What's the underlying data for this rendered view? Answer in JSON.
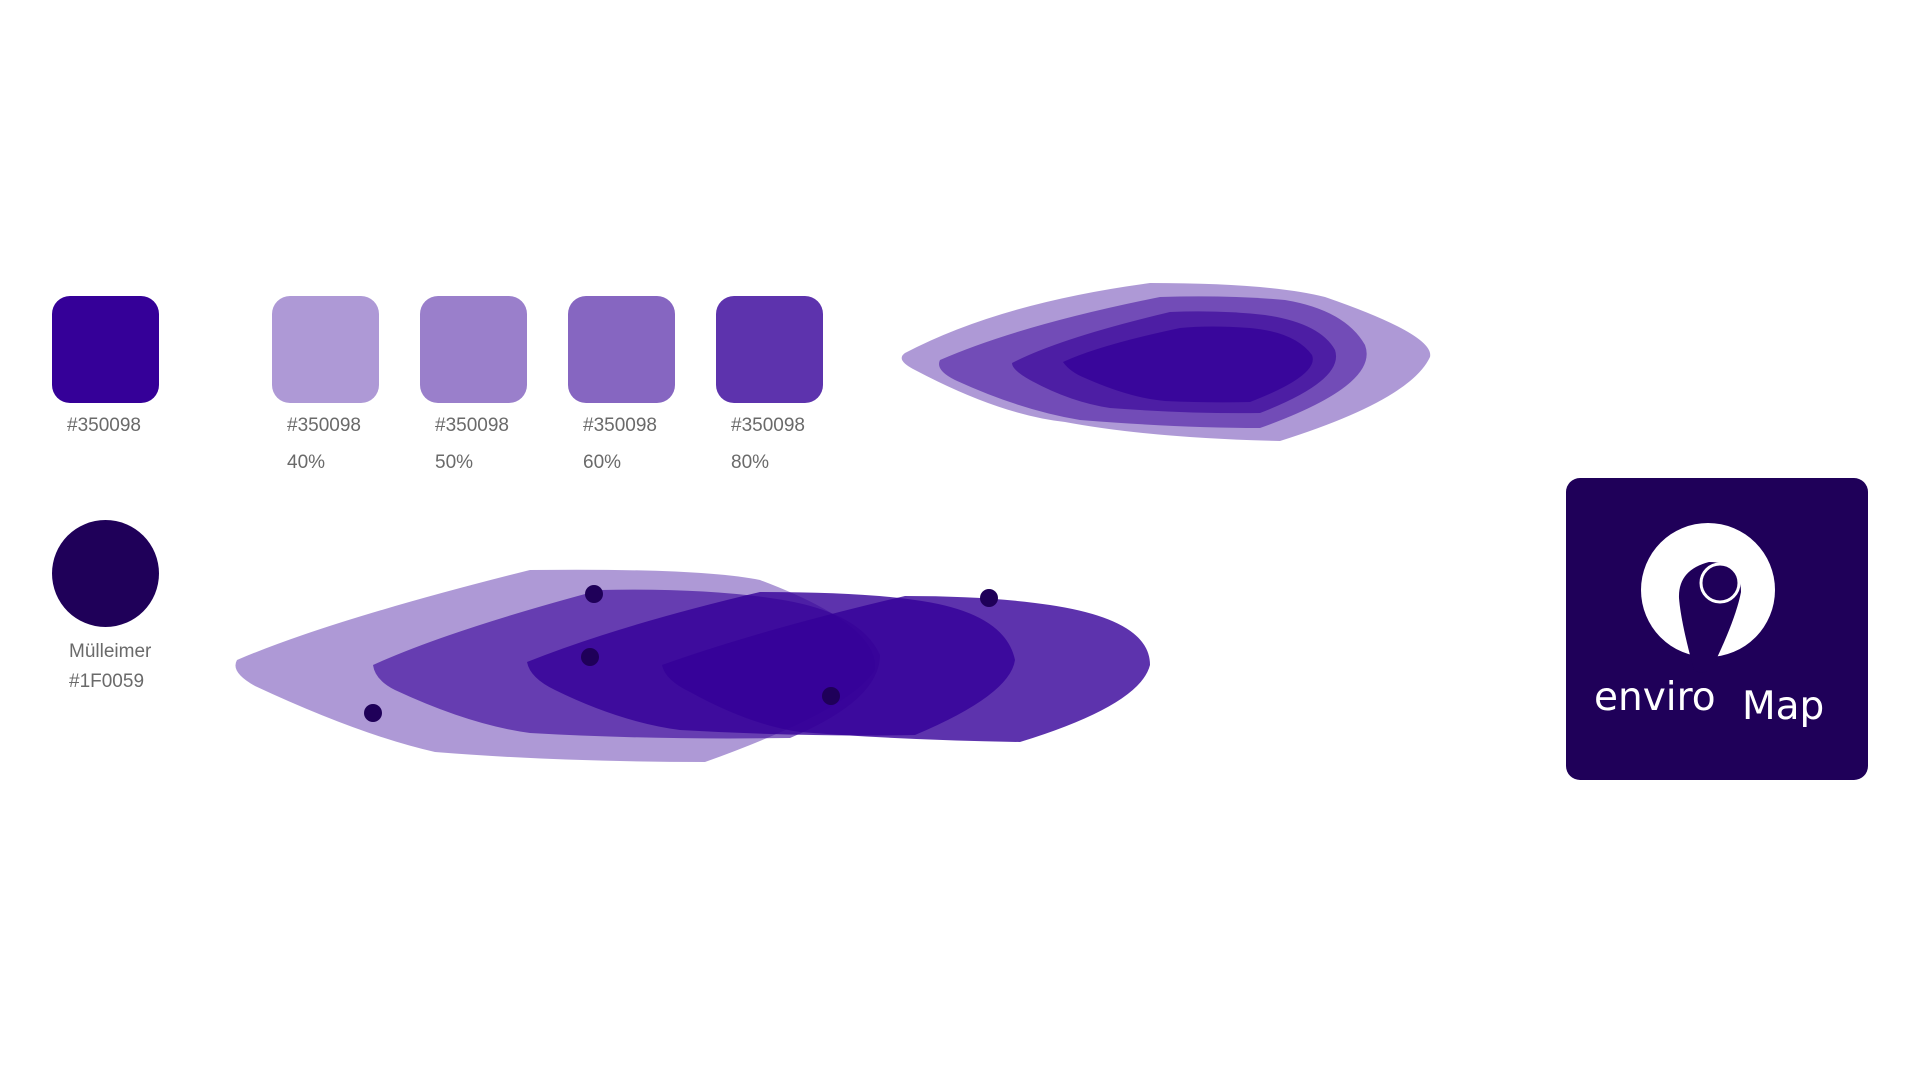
{
  "colors": {
    "primary": "#350098",
    "dark": "#1F0059",
    "white": "#ffffff"
  },
  "swatches": [
    {
      "hex": "#350098",
      "opacity": 1.0
    },
    {
      "hex": "#350098",
      "opacity": 0.4,
      "percent_label": "40%"
    },
    {
      "hex": "#350098",
      "opacity": 0.5,
      "percent_label": "50%"
    },
    {
      "hex": "#350098",
      "opacity": 0.6,
      "percent_label": "60%"
    },
    {
      "hex": "#350098",
      "opacity": 0.8,
      "percent_label": "80%"
    }
  ],
  "dark_swatch": {
    "name": "Mülleimer",
    "hex": "#1F0059"
  },
  "app_icon": {
    "word1": "enviro",
    "word2": "Map",
    "icon": "map-pin-icon"
  }
}
